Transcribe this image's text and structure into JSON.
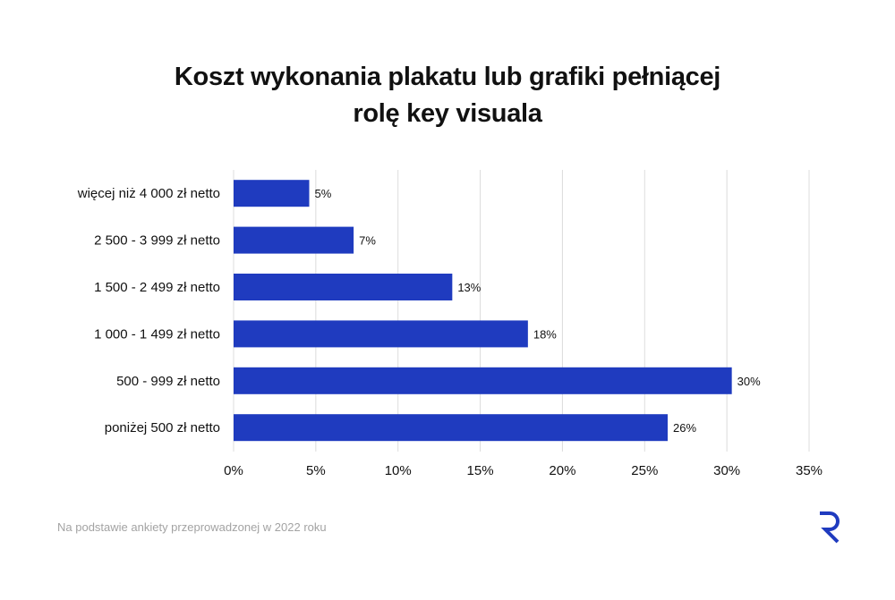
{
  "chart_data": {
    "type": "bar",
    "orientation": "horizontal",
    "title_line1": "Koszt wykonania plakatu lub grafiki pełniącej",
    "title_line2": "rolę key visuala",
    "categories": [
      "więcej niż 4 000 zł netto",
      "2 500 - 3 999 zł netto",
      "1 500 - 2 499 zł netto",
      "1 000 - 1 499 zł netto",
      "500 - 999 zł netto",
      "poniżej 500 zł netto"
    ],
    "values": [
      4.6,
      7.3,
      13.3,
      17.9,
      30.3,
      26.4
    ],
    "value_labels": [
      "5%",
      "7%",
      "13%",
      "18%",
      "30%",
      "26%"
    ],
    "xlim": [
      0,
      35
    ],
    "ticks": [
      0,
      5,
      10,
      15,
      20,
      25,
      30,
      35
    ],
    "tick_labels": [
      "0%",
      "5%",
      "10%",
      "15%",
      "20%",
      "25%",
      "30%",
      "35%"
    ],
    "grid": true,
    "bar_color": "#1f3bbf"
  },
  "footnote": "Na podstawie ankiety przeprowadzonej w 2022 roku",
  "logo": {
    "icon": "r-logo-icon",
    "color": "#1f3bbf"
  }
}
